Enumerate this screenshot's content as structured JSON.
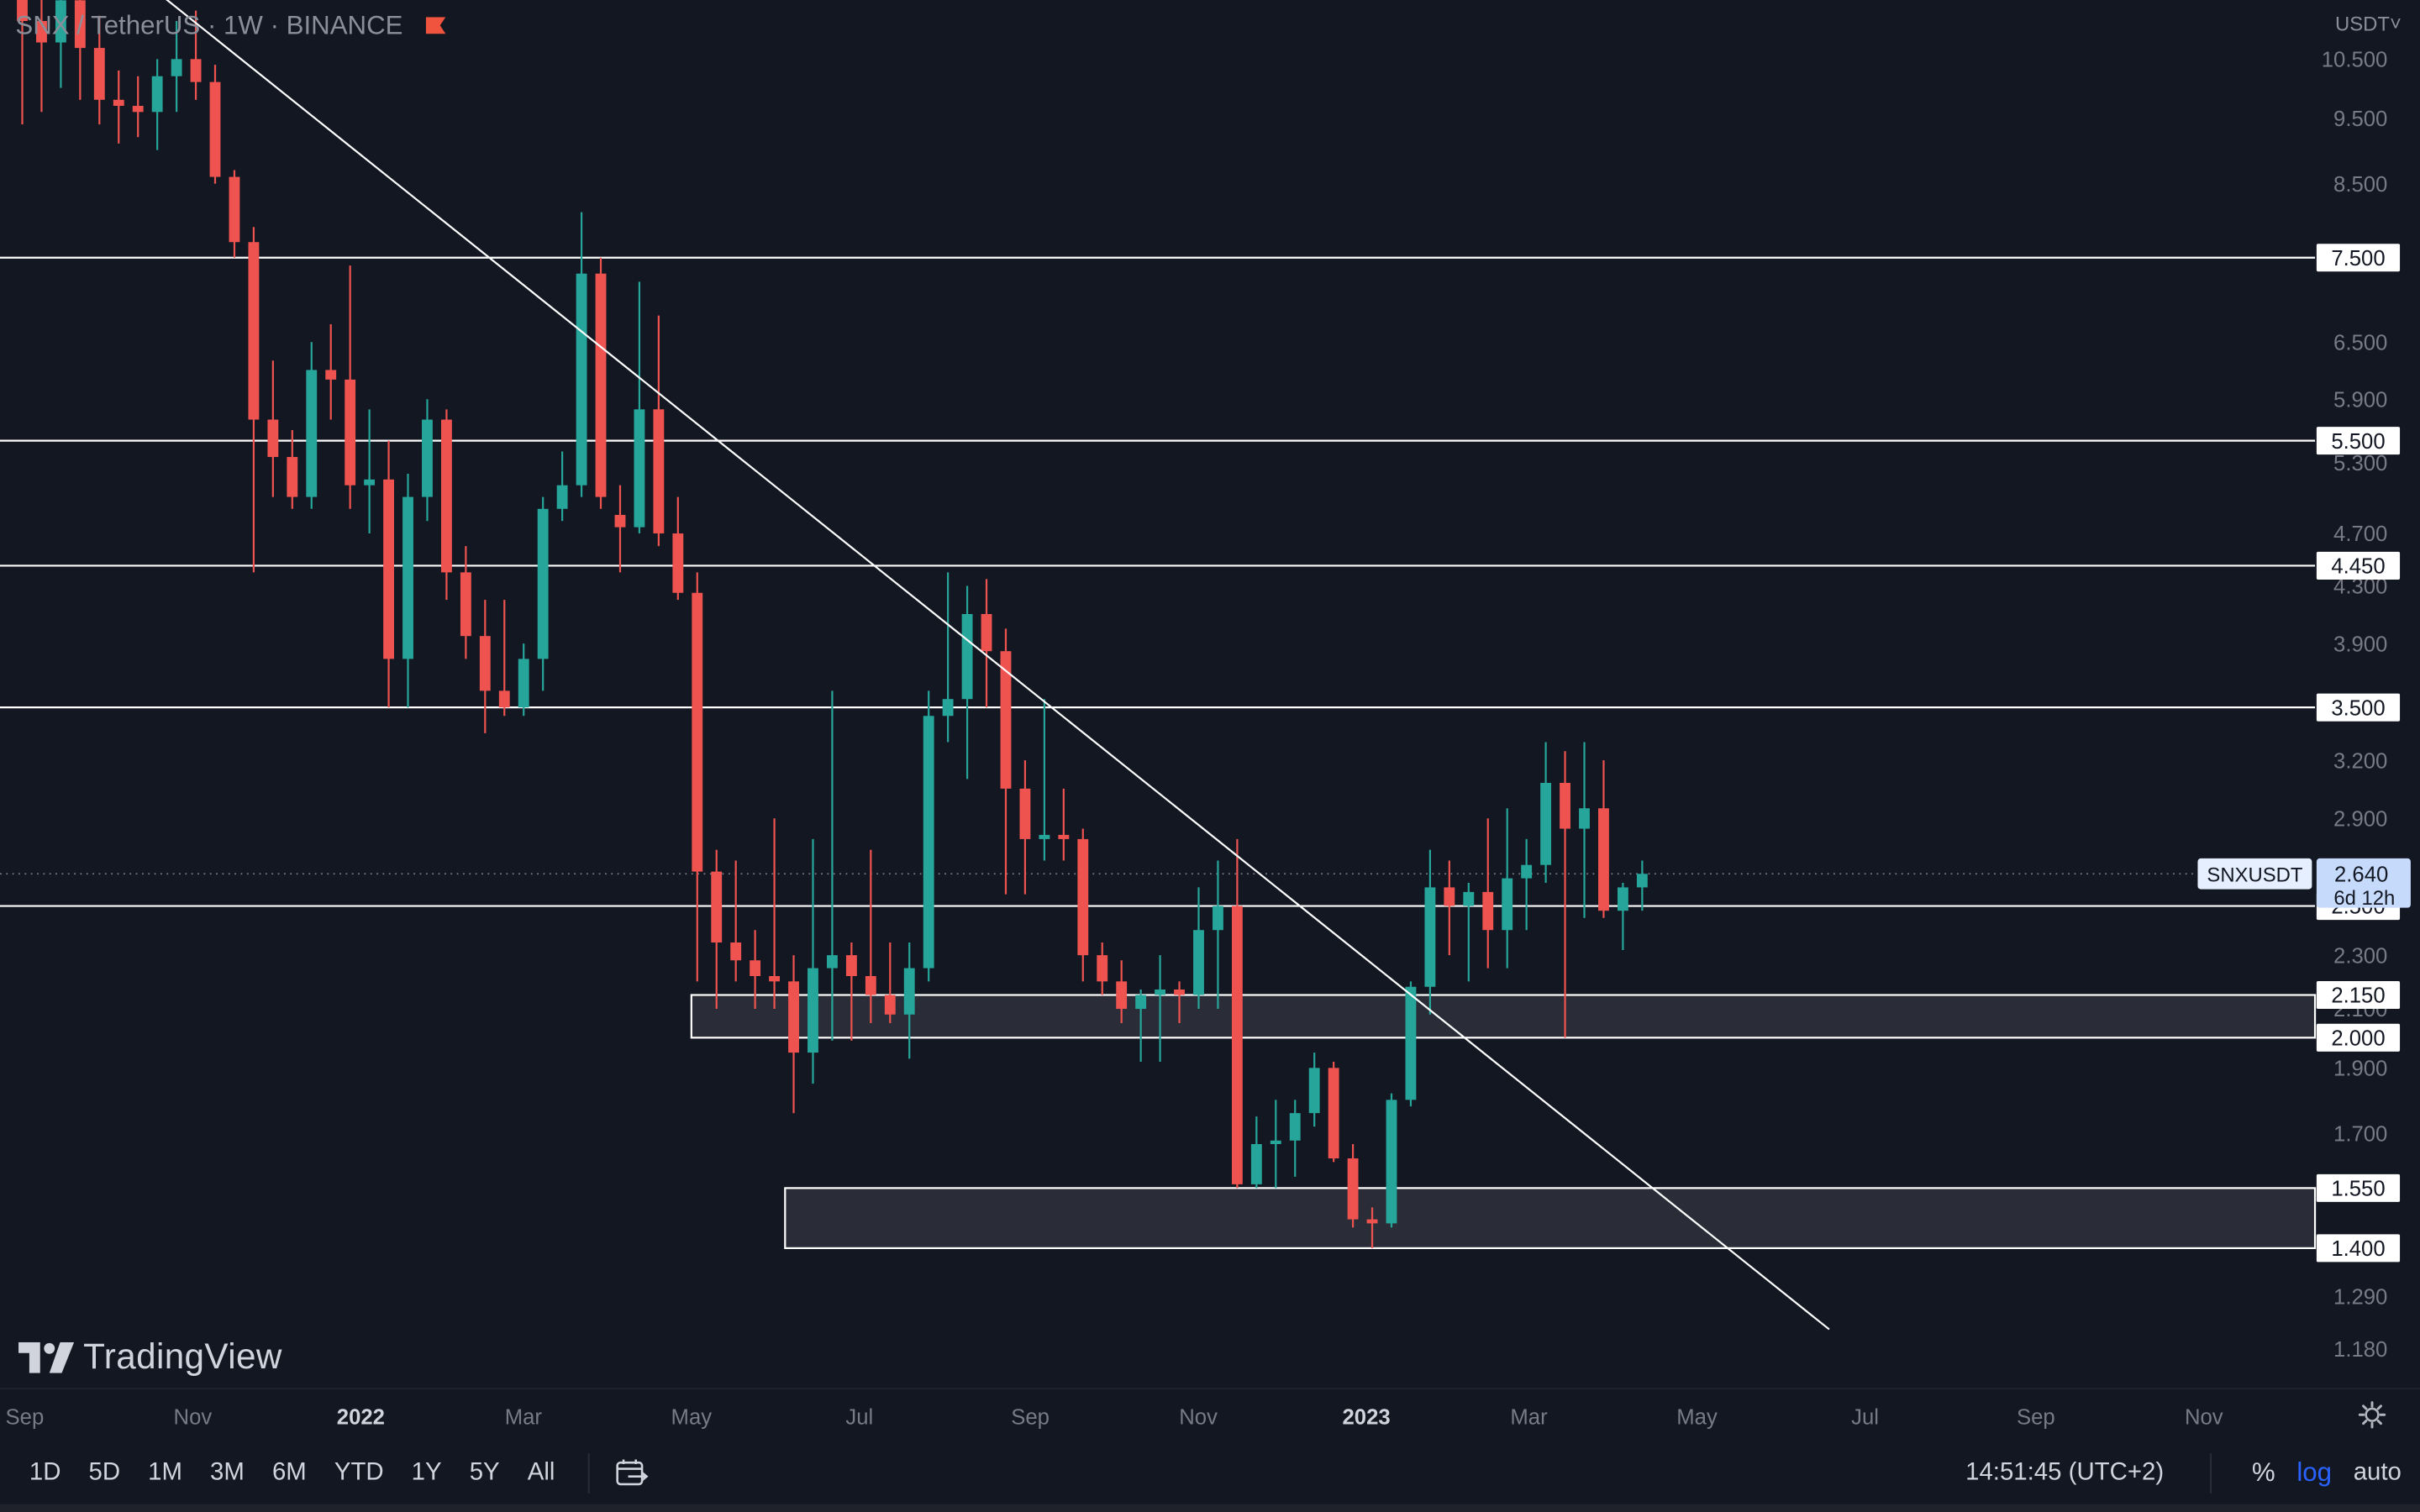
{
  "header": {
    "symbol": "SNX",
    "quote": "TetherUS",
    "interval": "1W",
    "exchange": "BINANCE",
    "currency": "USDT"
  },
  "branding": {
    "logo_text": "TradingView"
  },
  "time_ranges": [
    "1D",
    "5D",
    "1M",
    "3M",
    "6M",
    "YTD",
    "1Y",
    "5Y",
    "All"
  ],
  "status": {
    "clock": "14:51:45 (UTC+2)",
    "percent_label": "%",
    "log_label": "log",
    "auto_label": "auto"
  },
  "colors": {
    "background": "#131722",
    "up": "#26a69a",
    "down": "#ef5350",
    "text": "#b2b5be",
    "line": "#ffffff"
  },
  "chart_data": {
    "type": "candlestick",
    "symbol_label": "SNXUSDT",
    "last_price": "2.640",
    "countdown": "6d 12h",
    "scale": "log",
    "ylim": [
      1.1,
      11.5
    ],
    "y_ticks": [
      "10.500",
      "9.500",
      "8.500",
      "6.500",
      "5.900",
      "5.300",
      "4.700",
      "4.300",
      "3.900",
      "3.200",
      "2.900",
      "2.300",
      "2.100",
      "1.900",
      "1.700",
      "1.290",
      "1.180"
    ],
    "x_ticks": [
      {
        "label": "Sep",
        "date": "2021-09-01",
        "bold": false
      },
      {
        "label": "Nov",
        "date": "2021-11-01",
        "bold": false
      },
      {
        "label": "2022",
        "date": "2022-01-01",
        "bold": true
      },
      {
        "label": "Mar",
        "date": "2022-03-01",
        "bold": false
      },
      {
        "label": "May",
        "date": "2022-05-01",
        "bold": false
      },
      {
        "label": "Jul",
        "date": "2022-07-01",
        "bold": false
      },
      {
        "label": "Sep",
        "date": "2022-09-01",
        "bold": false
      },
      {
        "label": "Nov",
        "date": "2022-11-01",
        "bold": false
      },
      {
        "label": "2023",
        "date": "2023-01-01",
        "bold": true
      },
      {
        "label": "Mar",
        "date": "2023-03-01",
        "bold": false
      },
      {
        "label": "May",
        "date": "2023-05-01",
        "bold": false
      },
      {
        "label": "Jul",
        "date": "2023-07-01",
        "bold": false
      },
      {
        "label": "Sep",
        "date": "2023-09-01",
        "bold": false
      },
      {
        "label": "Nov",
        "date": "2023-11-01",
        "bold": false
      }
    ],
    "horizontal_levels": [
      {
        "price": 7.5,
        "label": "7.500"
      },
      {
        "price": 5.5,
        "label": "5.500"
      },
      {
        "price": 4.45,
        "label": "4.450"
      },
      {
        "price": 3.5,
        "label": "3.500"
      },
      {
        "price": 2.5,
        "label": "2.500"
      }
    ],
    "zones": [
      {
        "from_date": "2022-05-01",
        "top": 2.15,
        "bottom": 2.0,
        "top_label": "2.150",
        "bottom_label": "2.000"
      },
      {
        "from_date": "2022-06-04",
        "top": 1.55,
        "bottom": 1.4,
        "top_label": "1.550",
        "bottom_label": "1.400"
      }
    ],
    "trendline": {
      "start": {
        "date": "2021-10-16",
        "price": 11.9
      },
      "end": {
        "date": "2023-06-18",
        "price": 1.22
      }
    },
    "candles": [
      {
        "date": "2021-08-30",
        "o": 12.5,
        "h": 12.8,
        "l": 9.4,
        "c": 11.2
      },
      {
        "date": "2021-09-06",
        "o": 11.2,
        "h": 12.0,
        "l": 9.6,
        "c": 10.8
      },
      {
        "date": "2021-09-13",
        "o": 10.8,
        "h": 11.8,
        "l": 10.0,
        "c": 11.6
      },
      {
        "date": "2021-09-20",
        "o": 11.6,
        "h": 12.0,
        "l": 9.8,
        "c": 10.7
      },
      {
        "date": "2021-09-27",
        "o": 10.7,
        "h": 11.3,
        "l": 9.4,
        "c": 9.8
      },
      {
        "date": "2021-10-04",
        "o": 9.8,
        "h": 10.3,
        "l": 9.1,
        "c": 9.7
      },
      {
        "date": "2021-10-11",
        "o": 9.7,
        "h": 10.2,
        "l": 9.2,
        "c": 9.6
      },
      {
        "date": "2021-10-18",
        "o": 9.6,
        "h": 10.5,
        "l": 9.0,
        "c": 10.2
      },
      {
        "date": "2021-10-25",
        "o": 10.2,
        "h": 11.2,
        "l": 9.6,
        "c": 10.5
      },
      {
        "date": "2021-11-01",
        "o": 10.5,
        "h": 11.4,
        "l": 9.8,
        "c": 10.1
      },
      {
        "date": "2021-11-08",
        "o": 10.1,
        "h": 10.4,
        "l": 8.5,
        "c": 8.6
      },
      {
        "date": "2021-11-15",
        "o": 8.6,
        "h": 8.7,
        "l": 7.5,
        "c": 7.7
      },
      {
        "date": "2021-11-22",
        "o": 7.7,
        "h": 7.9,
        "l": 4.4,
        "c": 5.7
      },
      {
        "date": "2021-11-29",
        "o": 5.7,
        "h": 6.3,
        "l": 5.0,
        "c": 5.35
      },
      {
        "date": "2021-12-06",
        "o": 5.35,
        "h": 5.6,
        "l": 4.9,
        "c": 5.0
      },
      {
        "date": "2021-12-13",
        "o": 5.0,
        "h": 6.5,
        "l": 4.9,
        "c": 6.2
      },
      {
        "date": "2021-12-20",
        "o": 6.2,
        "h": 6.7,
        "l": 5.7,
        "c": 6.1
      },
      {
        "date": "2021-12-27",
        "o": 6.1,
        "h": 7.4,
        "l": 4.9,
        "c": 5.1
      },
      {
        "date": "2022-01-03",
        "o": 5.1,
        "h": 5.8,
        "l": 4.7,
        "c": 5.15
      },
      {
        "date": "2022-01-10",
        "o": 5.15,
        "h": 5.5,
        "l": 3.5,
        "c": 3.8
      },
      {
        "date": "2022-01-17",
        "o": 3.8,
        "h": 5.2,
        "l": 3.5,
        "c": 5.0
      },
      {
        "date": "2022-01-24",
        "o": 5.0,
        "h": 5.9,
        "l": 4.8,
        "c": 5.7
      },
      {
        "date": "2022-01-31",
        "o": 5.7,
        "h": 5.8,
        "l": 4.2,
        "c": 4.4
      },
      {
        "date": "2022-02-07",
        "o": 4.4,
        "h": 4.6,
        "l": 3.8,
        "c": 3.95
      },
      {
        "date": "2022-02-14",
        "o": 3.95,
        "h": 4.2,
        "l": 3.35,
        "c": 3.6
      },
      {
        "date": "2022-02-21",
        "o": 3.6,
        "h": 4.2,
        "l": 3.45,
        "c": 3.5
      },
      {
        "date": "2022-02-28",
        "o": 3.5,
        "h": 3.9,
        "l": 3.45,
        "c": 3.8
      },
      {
        "date": "2022-03-07",
        "o": 3.8,
        "h": 5.0,
        "l": 3.6,
        "c": 4.9
      },
      {
        "date": "2022-03-14",
        "o": 4.9,
        "h": 5.4,
        "l": 4.8,
        "c": 5.1
      },
      {
        "date": "2022-03-21",
        "o": 5.1,
        "h": 8.1,
        "l": 5.0,
        "c": 7.3
      },
      {
        "date": "2022-03-28",
        "o": 7.3,
        "h": 7.5,
        "l": 4.9,
        "c": 5.0
      },
      {
        "date": "2022-04-04",
        "o": 4.85,
        "h": 5.1,
        "l": 4.4,
        "c": 4.75
      },
      {
        "date": "2022-04-11",
        "o": 4.75,
        "h": 7.2,
        "l": 4.7,
        "c": 5.8
      },
      {
        "date": "2022-04-18",
        "o": 5.8,
        "h": 6.8,
        "l": 4.6,
        "c": 4.7
      },
      {
        "date": "2022-04-25",
        "o": 4.7,
        "h": 5.0,
        "l": 4.2,
        "c": 4.25
      },
      {
        "date": "2022-05-02",
        "o": 4.25,
        "h": 4.4,
        "l": 2.2,
        "c": 2.65
      },
      {
        "date": "2022-05-09",
        "o": 2.65,
        "h": 2.75,
        "l": 2.1,
        "c": 2.35
      },
      {
        "date": "2022-05-16",
        "o": 2.35,
        "h": 2.7,
        "l": 2.2,
        "c": 2.28
      },
      {
        "date": "2022-05-23",
        "o": 2.28,
        "h": 2.4,
        "l": 2.1,
        "c": 2.22
      },
      {
        "date": "2022-05-30",
        "o": 2.22,
        "h": 2.9,
        "l": 2.1,
        "c": 2.2
      },
      {
        "date": "2022-06-06",
        "o": 2.2,
        "h": 2.3,
        "l": 1.76,
        "c": 1.95
      },
      {
        "date": "2022-06-13",
        "o": 1.95,
        "h": 2.8,
        "l": 1.85,
        "c": 2.25
      },
      {
        "date": "2022-06-20",
        "o": 2.25,
        "h": 3.6,
        "l": 1.99,
        "c": 2.3
      },
      {
        "date": "2022-06-27",
        "o": 2.3,
        "h": 2.35,
        "l": 1.99,
        "c": 2.22
      },
      {
        "date": "2022-07-04",
        "o": 2.22,
        "h": 2.75,
        "l": 2.05,
        "c": 2.15
      },
      {
        "date": "2022-07-11",
        "o": 2.15,
        "h": 2.35,
        "l": 2.05,
        "c": 2.08
      },
      {
        "date": "2022-07-18",
        "o": 2.08,
        "h": 2.35,
        "l": 1.93,
        "c": 2.25
      },
      {
        "date": "2022-07-25",
        "o": 2.25,
        "h": 3.6,
        "l": 2.2,
        "c": 3.45
      },
      {
        "date": "2022-08-01",
        "o": 3.45,
        "h": 4.4,
        "l": 3.3,
        "c": 3.55
      },
      {
        "date": "2022-08-08",
        "o": 3.55,
        "h": 4.3,
        "l": 3.1,
        "c": 4.1
      },
      {
        "date": "2022-08-15",
        "o": 4.1,
        "h": 4.35,
        "l": 3.5,
        "c": 3.85
      },
      {
        "date": "2022-08-22",
        "o": 3.85,
        "h": 4.0,
        "l": 2.55,
        "c": 3.05
      },
      {
        "date": "2022-08-29",
        "o": 3.05,
        "h": 3.2,
        "l": 2.55,
        "c": 2.8
      },
      {
        "date": "2022-09-05",
        "o": 2.8,
        "h": 3.55,
        "l": 2.7,
        "c": 2.82
      },
      {
        "date": "2022-09-12",
        "o": 2.82,
        "h": 3.05,
        "l": 2.7,
        "c": 2.8
      },
      {
        "date": "2022-09-19",
        "o": 2.8,
        "h": 2.85,
        "l": 2.2,
        "c": 2.3
      },
      {
        "date": "2022-09-26",
        "o": 2.3,
        "h": 2.35,
        "l": 2.15,
        "c": 2.2
      },
      {
        "date": "2022-10-03",
        "o": 2.2,
        "h": 2.28,
        "l": 2.05,
        "c": 2.1
      },
      {
        "date": "2022-10-10",
        "o": 2.1,
        "h": 2.17,
        "l": 1.92,
        "c": 2.15
      },
      {
        "date": "2022-10-17",
        "o": 2.15,
        "h": 2.3,
        "l": 1.92,
        "c": 2.17
      },
      {
        "date": "2022-10-24",
        "o": 2.17,
        "h": 2.2,
        "l": 2.05,
        "c": 2.15
      },
      {
        "date": "2022-10-31",
        "o": 2.15,
        "h": 2.58,
        "l": 2.1,
        "c": 2.4
      },
      {
        "date": "2022-11-07",
        "o": 2.4,
        "h": 2.7,
        "l": 2.1,
        "c": 2.5
      },
      {
        "date": "2022-11-14",
        "o": 2.5,
        "h": 2.8,
        "l": 1.55,
        "c": 1.56
      },
      {
        "date": "2022-11-21",
        "o": 1.56,
        "h": 1.75,
        "l": 1.55,
        "c": 1.67
      },
      {
        "date": "2022-11-28",
        "o": 1.67,
        "h": 1.8,
        "l": 1.55,
        "c": 1.68
      },
      {
        "date": "2022-12-05",
        "o": 1.68,
        "h": 1.8,
        "l": 1.58,
        "c": 1.76
      },
      {
        "date": "2022-12-12",
        "o": 1.76,
        "h": 1.95,
        "l": 1.72,
        "c": 1.9
      },
      {
        "date": "2022-12-19",
        "o": 1.9,
        "h": 1.92,
        "l": 1.62,
        "c": 1.63
      },
      {
        "date": "2022-12-26",
        "o": 1.63,
        "h": 1.67,
        "l": 1.45,
        "c": 1.47
      },
      {
        "date": "2023-01-02",
        "o": 1.47,
        "h": 1.5,
        "l": 1.4,
        "c": 1.46
      },
      {
        "date": "2023-01-09",
        "o": 1.46,
        "h": 1.82,
        "l": 1.45,
        "c": 1.8
      },
      {
        "date": "2023-01-16",
        "o": 1.8,
        "h": 2.2,
        "l": 1.78,
        "c": 2.18
      },
      {
        "date": "2023-01-23",
        "o": 2.18,
        "h": 2.75,
        "l": 2.08,
        "c": 2.58
      },
      {
        "date": "2023-01-30",
        "o": 2.58,
        "h": 2.7,
        "l": 2.3,
        "c": 2.5
      },
      {
        "date": "2023-02-06",
        "o": 2.5,
        "h": 2.6,
        "l": 2.2,
        "c": 2.56
      },
      {
        "date": "2023-02-13",
        "o": 2.56,
        "h": 2.9,
        "l": 2.25,
        "c": 2.4
      },
      {
        "date": "2023-02-20",
        "o": 2.4,
        "h": 2.95,
        "l": 2.25,
        "c": 2.62
      },
      {
        "date": "2023-02-27",
        "o": 2.62,
        "h": 2.8,
        "l": 2.4,
        "c": 2.68
      },
      {
        "date": "2023-03-06",
        "o": 2.68,
        "h": 3.3,
        "l": 2.6,
        "c": 3.08
      },
      {
        "date": "2023-03-13",
        "o": 3.08,
        "h": 3.25,
        "l": 2.0,
        "c": 2.85
      },
      {
        "date": "2023-03-20",
        "o": 2.85,
        "h": 3.3,
        "l": 2.45,
        "c": 2.95
      },
      {
        "date": "2023-03-27",
        "o": 2.95,
        "h": 3.2,
        "l": 2.45,
        "c": 2.48
      },
      {
        "date": "2023-04-03",
        "o": 2.48,
        "h": 2.6,
        "l": 2.32,
        "c": 2.58
      },
      {
        "date": "2023-04-10",
        "o": 2.58,
        "h": 2.7,
        "l": 2.48,
        "c": 2.64
      }
    ]
  }
}
